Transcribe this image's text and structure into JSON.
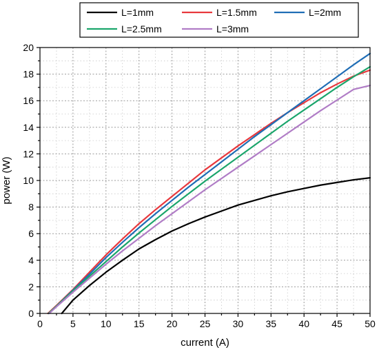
{
  "chart_data": {
    "type": "line",
    "title": "",
    "xlabel": "current (A)",
    "ylabel": "power (W)",
    "xlim": [
      0,
      50
    ],
    "ylim": [
      0,
      20
    ],
    "x_ticks": [
      0,
      5,
      10,
      15,
      20,
      25,
      30,
      35,
      40,
      45,
      50
    ],
    "y_ticks": [
      0,
      2,
      4,
      6,
      8,
      10,
      12,
      14,
      16,
      18,
      20
    ],
    "grid": true,
    "legend_position": "top",
    "series": [
      {
        "name": "L=1mm",
        "color": "#000000",
        "x": [
          3.3,
          5,
          7.5,
          10,
          12.5,
          15,
          17.5,
          20,
          22.5,
          25,
          27.5,
          30,
          32.5,
          35,
          37.5,
          40,
          42.5,
          45,
          47.5,
          50
        ],
        "y": [
          0,
          1.0,
          2.1,
          3.1,
          4.0,
          4.85,
          5.55,
          6.2,
          6.75,
          7.25,
          7.7,
          8.15,
          8.5,
          8.85,
          9.15,
          9.4,
          9.65,
          9.85,
          10.05,
          10.2
        ]
      },
      {
        "name": "L=1.5mm",
        "color": "#e8383d",
        "x": [
          1.2,
          2.5,
          5,
          7.5,
          10,
          12.5,
          15,
          17.5,
          20,
          22.5,
          25,
          27.5,
          30,
          32.5,
          35,
          37.5,
          40,
          42.5,
          45,
          47.5,
          50
        ],
        "y": [
          0,
          0.6,
          1.8,
          3.1,
          4.4,
          5.6,
          6.75,
          7.8,
          8.8,
          9.8,
          10.8,
          11.7,
          12.6,
          13.45,
          14.3,
          15.1,
          15.85,
          16.6,
          17.25,
          17.85,
          18.3
        ]
      },
      {
        "name": "L=2mm",
        "color": "#1f6db5",
        "x": [
          1.3,
          2.5,
          5,
          7.5,
          10,
          12.5,
          15,
          17.5,
          20,
          22.5,
          25,
          27.5,
          30,
          32.5,
          35,
          37.5,
          40,
          42.5,
          45,
          47.5,
          50
        ],
        "y": [
          0,
          0.55,
          1.75,
          2.95,
          4.2,
          5.35,
          6.45,
          7.5,
          8.5,
          9.5,
          10.45,
          11.4,
          12.35,
          13.3,
          14.2,
          15.1,
          16.0,
          16.9,
          17.8,
          18.7,
          19.55
        ]
      },
      {
        "name": "L=2.5mm",
        "color": "#1aa56b",
        "x": [
          1.3,
          2.5,
          5,
          7.5,
          10,
          12.5,
          15,
          17.5,
          20,
          22.5,
          25,
          27.5,
          30,
          32.5,
          35,
          37.5,
          40,
          42.5,
          45,
          47.5,
          50
        ],
        "y": [
          0,
          0.55,
          1.7,
          2.8,
          3.9,
          5.0,
          6.05,
          7.05,
          8.05,
          9.0,
          9.95,
          10.85,
          11.75,
          12.65,
          13.55,
          14.45,
          15.3,
          16.15,
          17.0,
          17.8,
          18.55
        ]
      },
      {
        "name": "L=3mm",
        "color": "#b07cc6",
        "x": [
          1.4,
          2.5,
          5,
          7.5,
          10,
          12.5,
          15,
          17.5,
          20,
          22.5,
          25,
          27.5,
          30,
          32.5,
          35,
          37.5,
          40,
          42.5,
          45,
          47.5,
          50
        ],
        "y": [
          0,
          0.5,
          1.6,
          2.65,
          3.7,
          4.7,
          5.65,
          6.6,
          7.5,
          8.4,
          9.3,
          10.15,
          11.0,
          11.85,
          12.7,
          13.55,
          14.4,
          15.25,
          16.05,
          16.85,
          17.15
        ]
      }
    ]
  }
}
